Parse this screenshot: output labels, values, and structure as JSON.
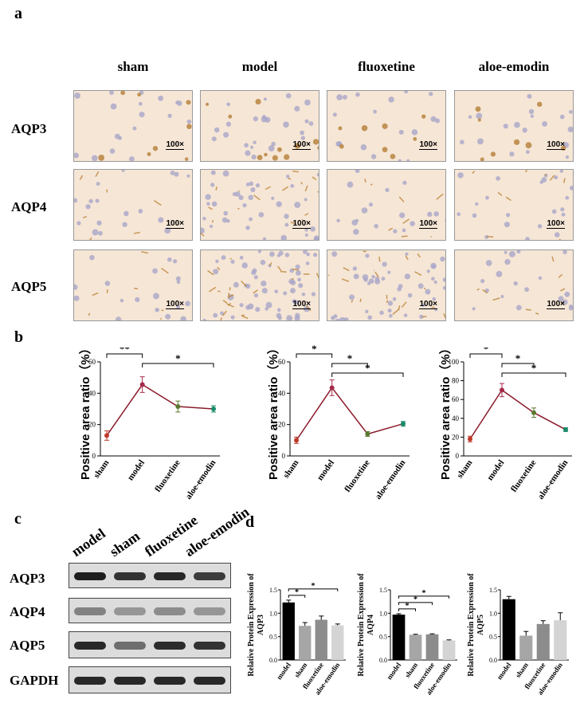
{
  "panels": {
    "a": "a",
    "b": "b",
    "c": "c",
    "d": "d"
  },
  "panel_a": {
    "columns": [
      "sham",
      "model",
      "fluoxetine",
      "aloe-emodin"
    ],
    "rows": [
      "AQP3",
      "AQP4",
      "AQP5"
    ],
    "scale_label": "100×"
  },
  "colors": {
    "sham": "#c0392b",
    "model": "#a52a4a",
    "fluoxetine": "#5b7a2e",
    "aloe-emodin": "#1a8a6a",
    "line": "#8b1a2a"
  },
  "chart_data": [
    {
      "type": "line",
      "panel": "b",
      "categories": [
        "sham",
        "model",
        "fluoxetine",
        "aloe-emodin"
      ],
      "values": [
        13,
        45.5,
        31.5,
        30
      ],
      "errors": [
        3,
        5,
        3.5,
        2
      ],
      "ylabel": "Positive area ratio（%）",
      "ylim": [
        0,
        60
      ],
      "yticks": [
        "0",
        "20",
        "40",
        "60"
      ],
      "annotations": [
        {
          "from": 0,
          "to": 1,
          "label": "**"
        },
        {
          "from": 1,
          "to": 3,
          "label": "*"
        }
      ]
    },
    {
      "type": "line",
      "panel": "b",
      "categories": [
        "sham",
        "model",
        "fluoxetine",
        "aloe-emodin"
      ],
      "values": [
        10,
        43.5,
        14,
        20.5
      ],
      "errors": [
        2,
        5,
        1.5,
        1.5
      ],
      "ylabel": "Positive area ratio（%）",
      "ylim": [
        0,
        60
      ],
      "yticks": [
        "0",
        "20",
        "40",
        "60"
      ],
      "annotations": [
        {
          "from": 0,
          "to": 1,
          "label": "*"
        },
        {
          "from": 1,
          "to": 2,
          "label": "*"
        },
        {
          "from": 1,
          "to": 3,
          "label": "*"
        }
      ]
    },
    {
      "type": "line",
      "panel": "b",
      "categories": [
        "sham",
        "model",
        "fluoxetine",
        "aloe-emodin"
      ],
      "values": [
        18,
        70,
        46,
        28
      ],
      "errors": [
        3,
        7,
        5,
        2
      ],
      "ylabel": "Positive area ratio（%）",
      "ylim": [
        0,
        100
      ],
      "yticks": [
        "0",
        "20",
        "40",
        "60",
        "80",
        "100"
      ],
      "annotations": [
        {
          "from": 0,
          "to": 1,
          "label": "*"
        },
        {
          "from": 1,
          "to": 2,
          "label": "*"
        },
        {
          "from": 1,
          "to": 3,
          "label": "*"
        }
      ]
    },
    {
      "type": "bar",
      "panel": "d",
      "categories": [
        "model",
        "sham",
        "fluoxetine",
        "aloe-emodin"
      ],
      "values": [
        1.23,
        0.73,
        0.86,
        0.74
      ],
      "errors": [
        0.05,
        0.07,
        0.08,
        0.03
      ],
      "ylabel": "Relative Protein Expression of AQP3",
      "ylim": [
        0,
        1.5
      ],
      "yticks": [
        "0.0",
        "0.5",
        "1.0",
        "1.5"
      ],
      "annotations": [
        {
          "from": 0,
          "to": 1,
          "label": "*"
        },
        {
          "from": 0,
          "to": 3,
          "label": "*"
        }
      ]
    },
    {
      "type": "bar",
      "panel": "d",
      "categories": [
        "model",
        "sham",
        "fluoxetine",
        "aloe-emodin"
      ],
      "values": [
        0.97,
        0.54,
        0.55,
        0.42
      ],
      "errors": [
        0.02,
        0.01,
        0.01,
        0.01
      ],
      "ylabel": "Relative Protein Expression of AQP4",
      "ylim": [
        0,
        1.5
      ],
      "yticks": [
        "0.0",
        "0.5",
        "1.0",
        "1.5"
      ],
      "annotations": [
        {
          "from": 0,
          "to": 1,
          "label": "*"
        },
        {
          "from": 0,
          "to": 2,
          "label": "*"
        },
        {
          "from": 0,
          "to": 3,
          "label": "*"
        }
      ]
    },
    {
      "type": "bar",
      "panel": "d",
      "categories": [
        "model",
        "sham",
        "fluoxetine",
        "aloe-emodin"
      ],
      "values": [
        1.3,
        0.52,
        0.77,
        0.85
      ],
      "errors": [
        0.06,
        0.09,
        0.07,
        0.16
      ],
      "ylabel": "Relative Protein Expression of AQP5",
      "ylim": [
        0,
        1.5
      ],
      "yticks": [
        "0.0",
        "0.5",
        "1.0",
        "1.5"
      ],
      "annotations": []
    }
  ],
  "bar_colors": [
    "#000000",
    "#a6a6a6",
    "#8c8c8c",
    "#d4d4d4"
  ],
  "panel_c": {
    "lanes": [
      "model",
      "sham",
      "fluoxetine",
      "aloe-emodin"
    ],
    "rows": [
      "AQP3",
      "AQP4",
      "AQP5",
      "GAPDH"
    ],
    "band_intensity": [
      [
        0.95,
        0.85,
        0.9,
        0.8
      ],
      [
        0.45,
        0.35,
        0.4,
        0.35
      ],
      [
        0.9,
        0.55,
        0.88,
        0.85
      ],
      [
        0.9,
        0.9,
        0.9,
        0.9
      ]
    ]
  }
}
